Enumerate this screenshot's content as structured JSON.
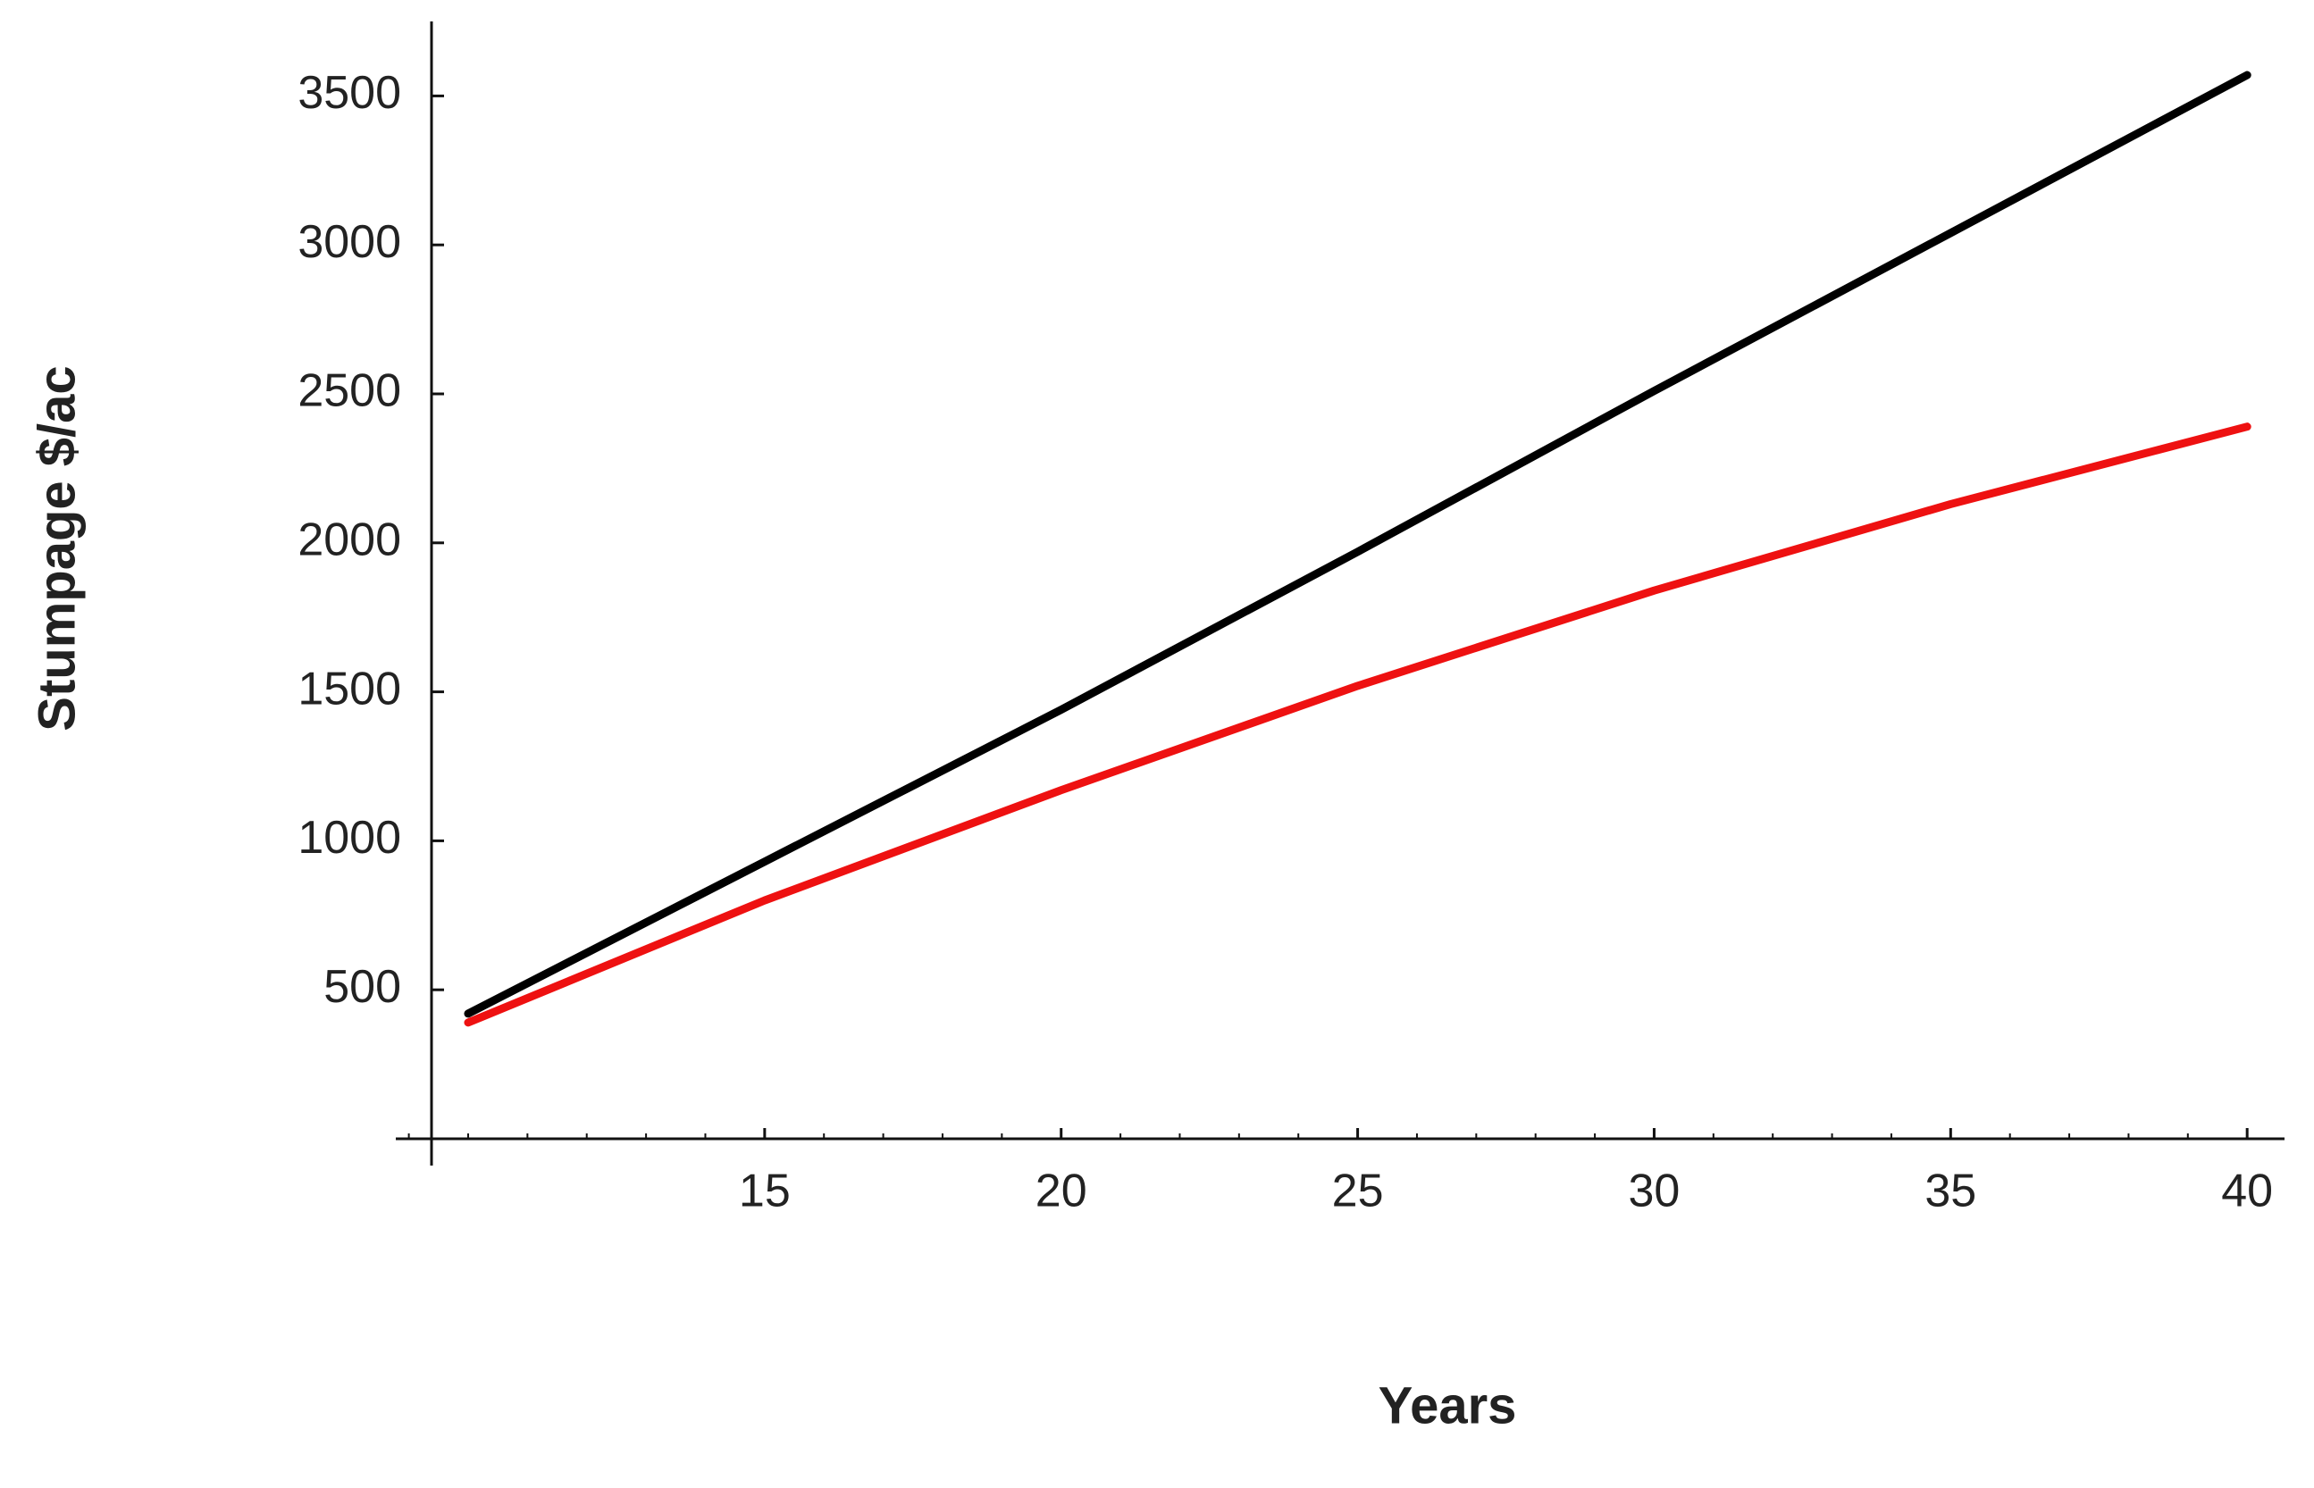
{
  "chart_data": {
    "type": "line",
    "xlabel": "Years",
    "ylabel": "Stumpage $/ac",
    "x": [
      10,
      15,
      20,
      25,
      30,
      35,
      40
    ],
    "series": [
      {
        "color": "#000000",
        "values": [
          420,
          930,
          1440,
          1970,
          2510,
          3040,
          3570
        ]
      },
      {
        "color": "#ee1111",
        "values": [
          390,
          800,
          1170,
          1520,
          1840,
          2130,
          2390
        ]
      }
    ],
    "xlim": [
      8.78,
      40.63
    ],
    "ylim": [
      0,
      3750
    ],
    "xticks": [
      15,
      20,
      25,
      30,
      35,
      40
    ],
    "yticks": [
      500,
      1000,
      1500,
      2000,
      2500,
      3000,
      3500
    ]
  }
}
